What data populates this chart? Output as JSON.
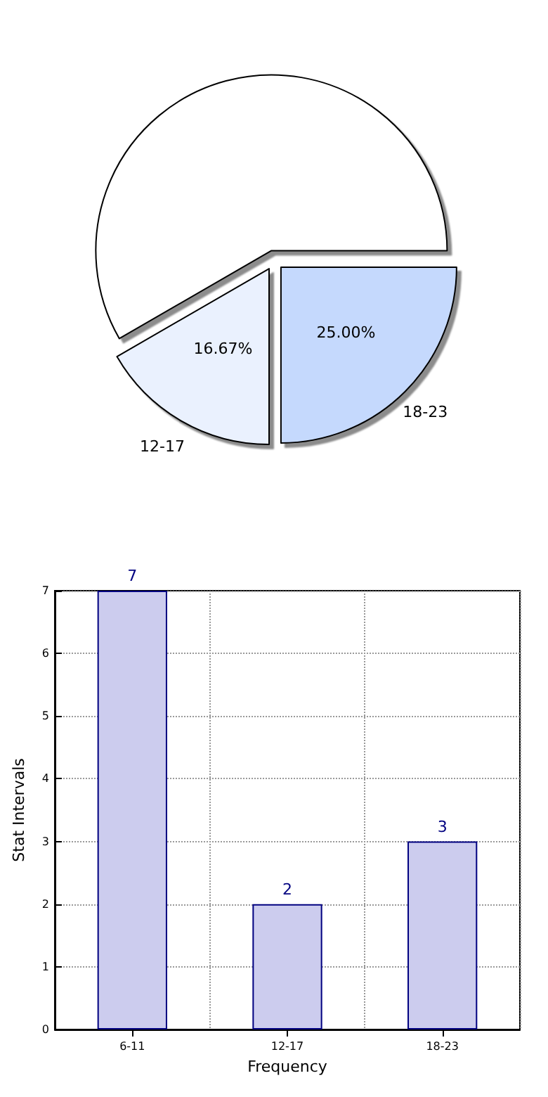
{
  "chart_data": [
    {
      "type": "pie",
      "categories": [
        null,
        "12-17",
        "18-23"
      ],
      "values": [
        58.33,
        16.67,
        25.0
      ],
      "colors": [
        "#ffffff",
        "#eaf1fe",
        "#c5d9fd"
      ],
      "value_labels": [
        null,
        "16.67%",
        "25.00%"
      ]
    },
    {
      "type": "bar",
      "categories": [
        "6-11",
        "12-17",
        "18-23"
      ],
      "values": [
        7,
        2,
        3
      ],
      "color": "#ccccee",
      "xlabel": "Frequency",
      "ylabel": "Stat Intervals",
      "ylim": [
        0,
        7
      ],
      "yticks": [
        0,
        1,
        2,
        3,
        4,
        5,
        6,
        7
      ],
      "grid": true,
      "data_labels": true
    }
  ]
}
